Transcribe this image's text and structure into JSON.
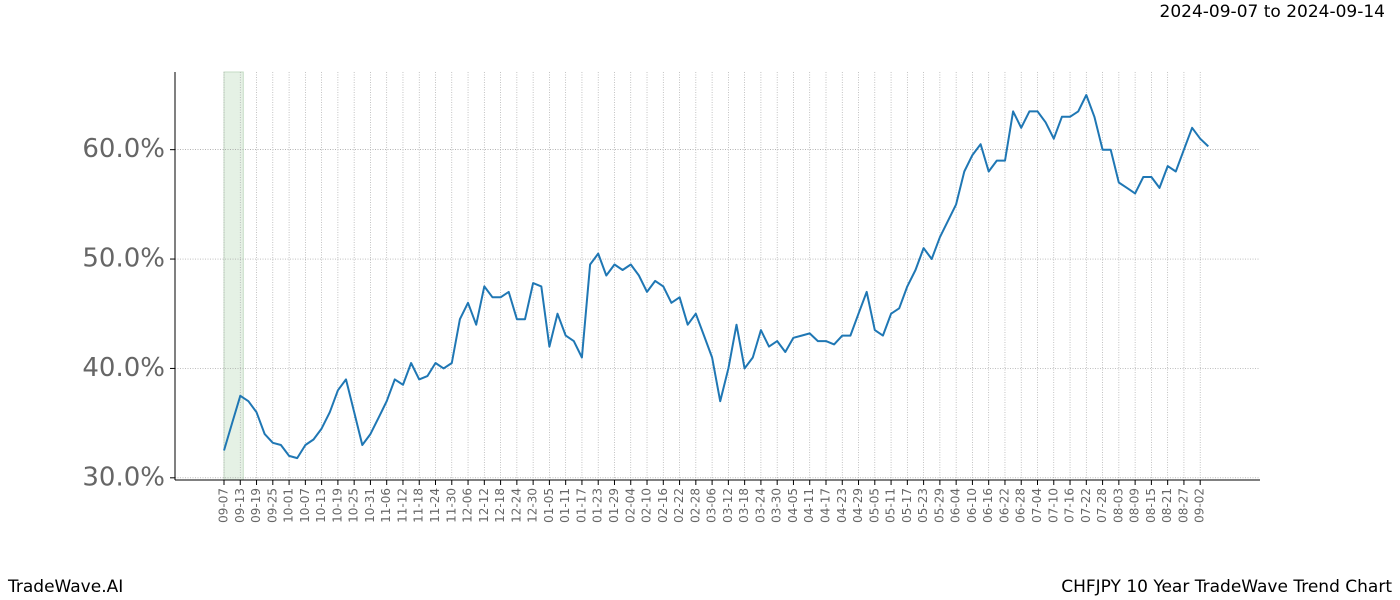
{
  "chart_data": {
    "type": "line",
    "title": "2024-09-07 to 2024-09-14",
    "footer_left": "TradeWave.AI",
    "footer_right": "CHFJPY 10 Year TradeWave Trend Chart",
    "categories": [
      "09-07",
      null,
      "09-13",
      null,
      "09-19",
      null,
      "09-25",
      null,
      "10-01",
      null,
      "10-07",
      null,
      "10-13",
      null,
      "10-19",
      null,
      "10-25",
      null,
      "10-31",
      null,
      "11-06",
      null,
      "11-12",
      null,
      "11-18",
      null,
      "11-24",
      null,
      "11-30",
      null,
      "12-06",
      null,
      "12-12",
      null,
      "12-18",
      null,
      "12-24",
      null,
      "12-30",
      null,
      "01-05",
      null,
      "01-11",
      null,
      "01-17",
      null,
      "01-23",
      null,
      "01-29",
      null,
      "02-04",
      null,
      "02-10",
      null,
      "02-16",
      null,
      "02-22",
      null,
      "02-28",
      null,
      "03-06",
      null,
      "03-12",
      null,
      "03-18",
      null,
      "03-24",
      null,
      "03-30",
      null,
      "04-05",
      null,
      "04-11",
      null,
      "04-17",
      null,
      "04-23",
      null,
      "04-29",
      null,
      "05-05",
      null,
      "05-11",
      null,
      "05-17",
      null,
      "05-23",
      null,
      "05-29",
      null,
      "06-04",
      null,
      "06-10",
      null,
      "06-16",
      null,
      "06-22",
      null,
      "06-28",
      null,
      "07-04",
      null,
      "07-10",
      null,
      "07-16",
      null,
      "07-22",
      null,
      "07-28",
      null,
      "08-03",
      null,
      "08-09",
      null,
      "08-15",
      null,
      "08-21",
      null,
      "08-27",
      null,
      "09-02",
      null
    ],
    "series": [
      {
        "color": "#1f77b4",
        "values": [
          32.5,
          35,
          37.5,
          37,
          36,
          34,
          33.2,
          33,
          32,
          31.8,
          33,
          33.5,
          34.5,
          36,
          38,
          39,
          36,
          33,
          34,
          35.5,
          37,
          39,
          38.5,
          40.5,
          39,
          39.3,
          40.5,
          40,
          40.5,
          44.5,
          46,
          44,
          47.5,
          46.5,
          46.5,
          47,
          44.5,
          44.5,
          47.8,
          47.5,
          42,
          45,
          43,
          42.5,
          41,
          49.5,
          50.5,
          48.5,
          49.5,
          49,
          49.5,
          48.5,
          47,
          48,
          47.5,
          46,
          46.5,
          44,
          45,
          43,
          41,
          37,
          40,
          44,
          40,
          41,
          43.5,
          42,
          42.5,
          41.5,
          42.8,
          43,
          43.2,
          42.5,
          42.5,
          42.2,
          43,
          43,
          45,
          47,
          43.5,
          43,
          45,
          45.5,
          47.5,
          49,
          51,
          50,
          52,
          53.5,
          55,
          58,
          59.5,
          60.5,
          58,
          59,
          59,
          63.5,
          62,
          63.5,
          63.5,
          62.5,
          61,
          63,
          63,
          63.5,
          65,
          63,
          60,
          60,
          57,
          56.5,
          56,
          57.5,
          57.5,
          56.5,
          58.5,
          58,
          60,
          62,
          61,
          60.3
        ]
      }
    ],
    "ylim": [
      29.8,
      67.1
    ],
    "yticks": [
      {
        "value": 30,
        "label": "30.0%"
      },
      {
        "value": 40,
        "label": "40.0%"
      },
      {
        "value": 50,
        "label": "50.0%"
      },
      {
        "value": 60,
        "label": "60.0%"
      }
    ],
    "grid": true
  }
}
